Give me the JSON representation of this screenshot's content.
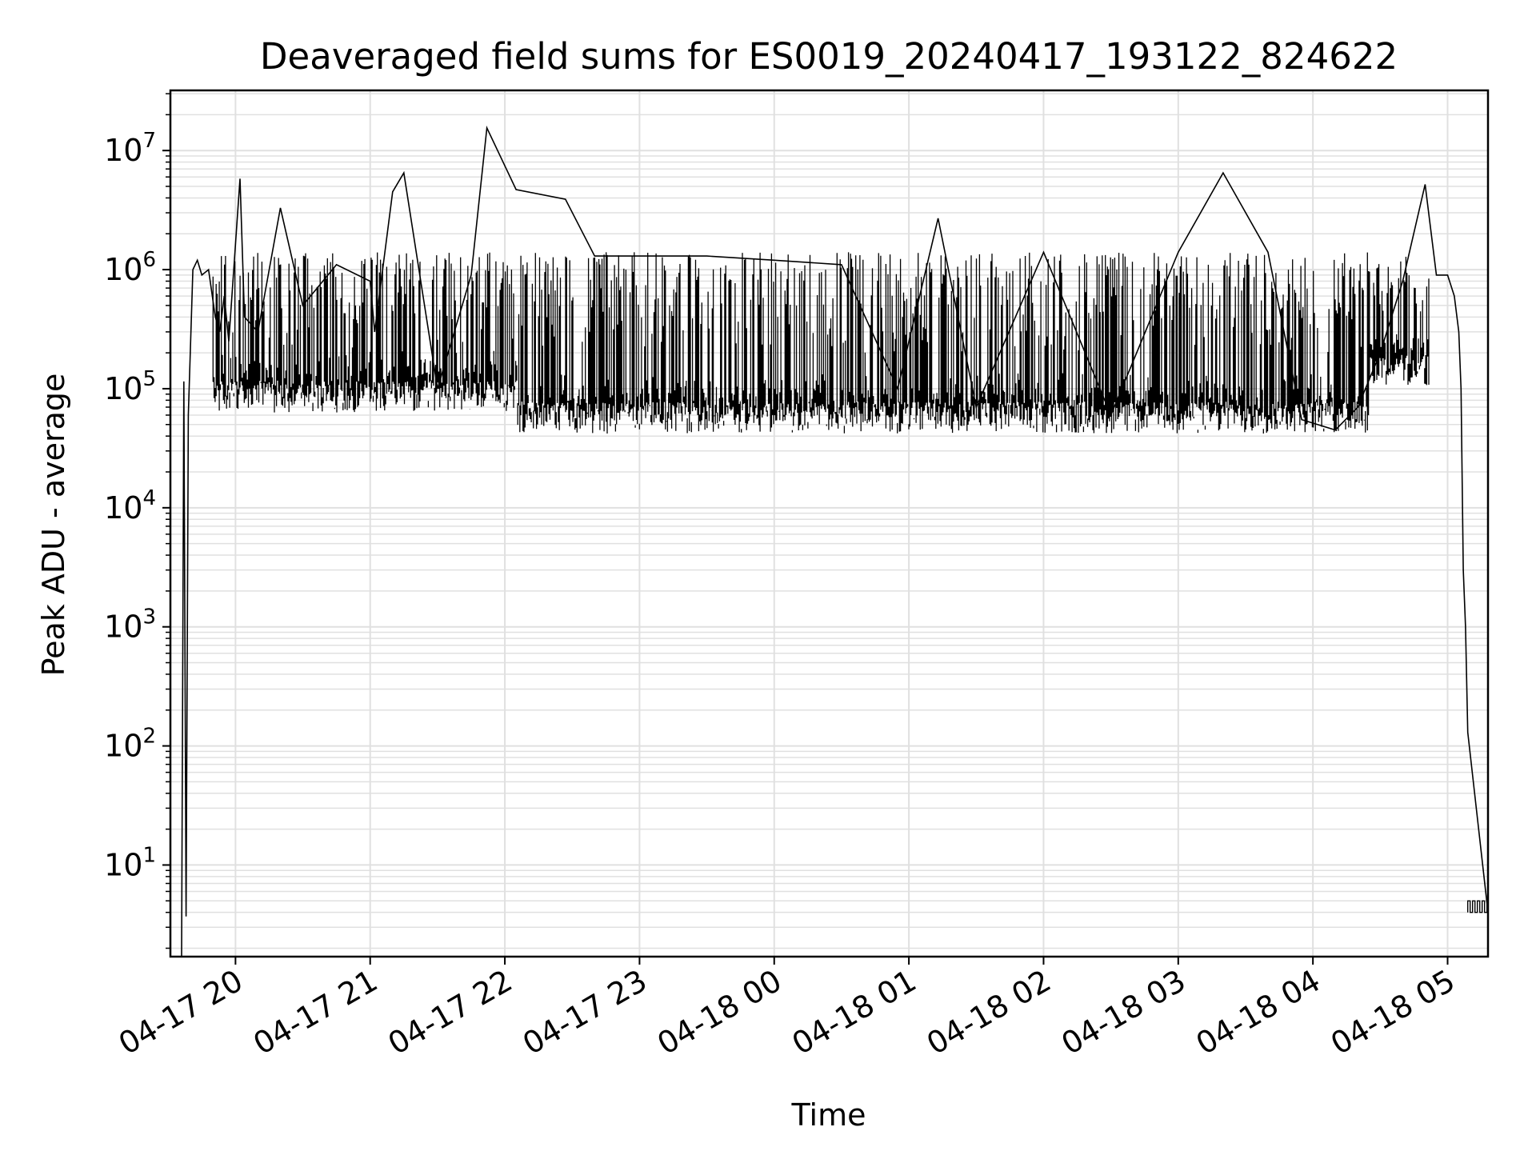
{
  "chart_data": {
    "type": "line",
    "title": "Deaveraged field sums for ES0019_20240417_193122_824622",
    "xlabel": "Time",
    "ylabel": "Peak ADU - average",
    "yscale": "log",
    "ylim": [
      1.7,
      32000000
    ],
    "xlim": [
      "2024-04-17 19:31:00",
      "2024-04-18 05:18:00"
    ],
    "grid": true,
    "legend": "none",
    "colors": {
      "line": "#000000",
      "grid": "#e0e0e0",
      "axes": "#000000"
    },
    "x_ticks": [
      {
        "at": "2024-04-17 20:00",
        "label": "04-17 20"
      },
      {
        "at": "2024-04-17 21:00",
        "label": "04-17 21"
      },
      {
        "at": "2024-04-17 22:00",
        "label": "04-17 22"
      },
      {
        "at": "2024-04-17 23:00",
        "label": "04-17 23"
      },
      {
        "at": "2024-04-18 00:00",
        "label": "04-18 00"
      },
      {
        "at": "2024-04-18 01:00",
        "label": "04-18 01"
      },
      {
        "at": "2024-04-18 02:00",
        "label": "04-18 02"
      },
      {
        "at": "2024-04-18 03:00",
        "label": "04-18 03"
      },
      {
        "at": "2024-04-18 04:00",
        "label": "04-18 04"
      },
      {
        "at": "2024-04-18 05:00",
        "label": "04-18 05"
      }
    ],
    "y_ticks": [
      {
        "value": 10,
        "base": "10",
        "exp": "1"
      },
      {
        "value": 100,
        "base": "10",
        "exp": "2"
      },
      {
        "value": 1000,
        "base": "10",
        "exp": "3"
      },
      {
        "value": 10000,
        "base": "10",
        "exp": "4"
      },
      {
        "value": 100000,
        "base": "10",
        "exp": "5"
      },
      {
        "value": 1000000,
        "base": "10",
        "exp": "6"
      },
      {
        "value": 10000000,
        "base": "10",
        "exp": "7"
      }
    ],
    "series": [
      {
        "x": [
          "2024-04-17 19:36",
          "2024-04-17 19:37",
          "2024-04-17 19:38",
          "2024-04-17 19:39",
          "2024-04-17 19:41",
          "2024-04-17 19:43",
          "2024-04-17 19:45",
          "2024-04-17 19:48",
          "2024-04-17 19:51",
          "2024-04-17 19:53",
          "2024-04-17 19:55",
          "2024-04-17 19:57",
          "2024-04-17 20:02",
          "2024-04-17 20:04",
          "2024-04-17 20:10",
          "2024-04-17 20:20",
          "2024-04-17 20:30",
          "2024-04-17 20:45",
          "2024-04-17 21:00",
          "2024-04-17 21:02",
          "2024-04-17 21:10",
          "2024-04-17 21:15",
          "2024-04-17 21:30",
          "2024-04-17 21:45",
          "2024-04-17 21:52",
          "2024-04-17 22:05",
          "2024-04-17 22:27",
          "2024-04-17 22:40",
          "2024-04-17 23:00",
          "2024-04-17 23:30",
          "2024-04-18 00:00",
          "2024-04-18 00:30",
          "2024-04-18 00:55",
          "2024-04-18 01:13",
          "2024-04-18 01:30",
          "2024-04-18 02:00",
          "2024-04-18 02:30",
          "2024-04-18 03:00",
          "2024-04-18 03:20",
          "2024-04-18 03:40",
          "2024-04-18 03:55",
          "2024-04-18 04:10",
          "2024-04-18 04:20",
          "2024-04-18 04:30",
          "2024-04-18 04:40",
          "2024-04-18 04:50",
          "2024-04-18 04:55",
          "2024-04-18 05:00",
          "2024-04-18 05:03",
          "2024-04-18 05:05",
          "2024-04-18 05:06",
          "2024-04-18 05:07",
          "2024-04-18 05:08",
          "2024-04-18 05:09",
          "2024-04-18 05:18"
        ],
        "values": [
          1.7,
          115000,
          3.7,
          60000,
          1000000,
          1200000,
          900000,
          1000000,
          400000,
          300000,
          600000,
          250000,
          5800000,
          400000,
          300000,
          3300000,
          500000,
          1100000,
          800000,
          300000,
          4500000,
          6500000,
          100000,
          900000,
          15500000,
          4700000,
          3900000,
          1300000,
          1300000,
          1300000,
          1200000,
          1100000,
          100000,
          2700000,
          70000,
          1400000,
          60000,
          1400000,
          6500000,
          1400000,
          55000,
          45000,
          70000,
          200000,
          800000,
          5200000,
          900000,
          900000,
          600000,
          300000,
          100000,
          3000,
          1000,
          130,
          4
        ]
      }
    ],
    "style_notes": "Dense noisy trace oscillating between about 4e4 and 1.5e6 throughout the night with sparse spikes; ramps up near 19:35 and falls off after 05:03, then flat near 4."
  }
}
